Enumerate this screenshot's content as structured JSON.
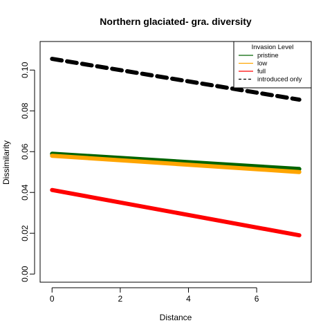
{
  "chart_data": {
    "type": "line",
    "title": "Northern glaciated- gra. diversity",
    "xlabel": "Distance",
    "ylabel": "Dissimilarity",
    "xlim": [
      -0.35,
      7.6
    ],
    "ylim": [
      -0.004,
      0.114
    ],
    "x_ticks": [
      0,
      2,
      4,
      6
    ],
    "x_tick_labels": [
      "0",
      "2",
      "4",
      "6"
    ],
    "y_ticks": [
      0.0,
      0.02,
      0.04,
      0.06,
      0.08,
      0.1
    ],
    "y_tick_labels": [
      "0.00",
      "0.02",
      "0.04",
      "0.06",
      "0.08",
      "0.10"
    ],
    "legend": {
      "title": "Invasion Level",
      "position": "top-right",
      "entries": [
        {
          "label": "pristine",
          "color": "#006400",
          "style": "solid"
        },
        {
          "label": "low",
          "color": "#FFA500",
          "style": "solid"
        },
        {
          "label": "full",
          "color": "#FF0000",
          "style": "solid"
        },
        {
          "label": "introduced only",
          "color": "#000000",
          "style": "dashed"
        }
      ]
    },
    "series": [
      {
        "name": "introduced only",
        "color": "#000000",
        "style": "dashed",
        "x": [
          0,
          7.25
        ],
        "y": [
          0.1055,
          0.0855
        ]
      },
      {
        "name": "pristine",
        "color": "#006400",
        "style": "solid",
        "x": [
          0,
          7.25
        ],
        "y": [
          0.059,
          0.0515
        ]
      },
      {
        "name": "low",
        "color": "#FFA500",
        "style": "solid",
        "x": [
          0,
          7.25
        ],
        "y": [
          0.058,
          0.05
        ]
      },
      {
        "name": "full",
        "color": "#FF0000",
        "style": "solid",
        "x": [
          0,
          7.25
        ],
        "y": [
          0.0412,
          0.019
        ]
      }
    ],
    "grid": false
  }
}
